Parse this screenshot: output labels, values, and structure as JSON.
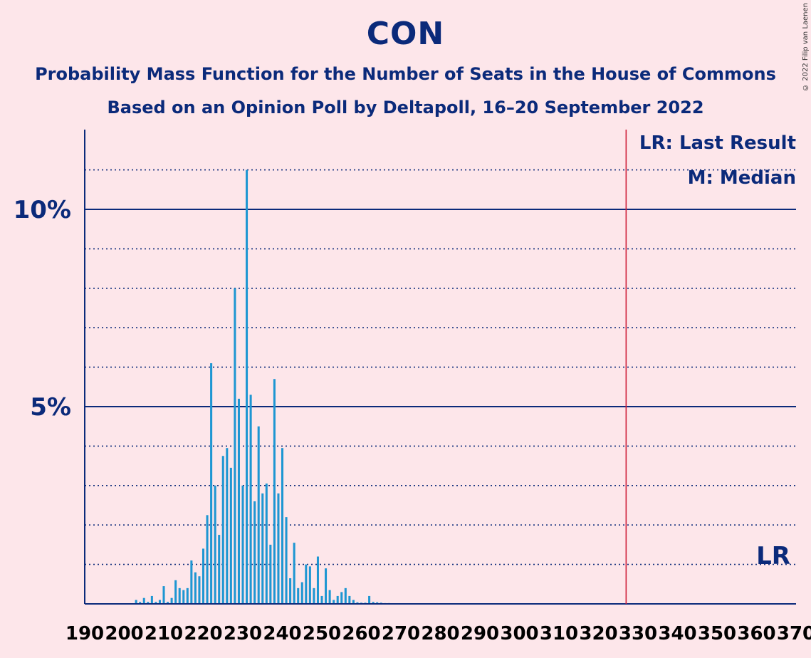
{
  "title": "CON",
  "subtitle1": "Probability Mass Function for the Number of Seats in the House of Commons",
  "subtitle2": "Based on an Opinion Poll by Deltapoll, 16–20 September 2022",
  "copyright": "© 2022 Filip van Laenen",
  "legend": {
    "lr": "LR: Last Result",
    "median": "M: Median",
    "lr_marker": "LR"
  },
  "colors": {
    "background": "#fde6ea",
    "bar": "#1e96d2",
    "axis": "#0b2a7a",
    "last_result_line": "#d0203a"
  },
  "chart_data": {
    "type": "bar",
    "xlim": [
      190,
      370
    ],
    "ylim": [
      0,
      12
    ],
    "x_ticks": [
      "190",
      "200",
      "210",
      "220",
      "230",
      "240",
      "250",
      "260",
      "270",
      "280",
      "290",
      "300",
      "310",
      "320",
      "330",
      "340",
      "350",
      "360",
      "370"
    ],
    "y_major_ticks": [
      {
        "value": 5,
        "label": "5%"
      },
      {
        "value": 10,
        "label": "10%"
      }
    ],
    "y_minor_gridlines": [
      1,
      2,
      3,
      4,
      6,
      7,
      8,
      9,
      11
    ],
    "last_result": 327,
    "median": 231,
    "x": [
      203,
      204,
      205,
      206,
      207,
      208,
      209,
      210,
      211,
      212,
      213,
      214,
      215,
      216,
      217,
      218,
      219,
      220,
      221,
      222,
      223,
      224,
      225,
      226,
      227,
      228,
      229,
      230,
      231,
      232,
      233,
      234,
      235,
      236,
      237,
      238,
      239,
      240,
      241,
      242,
      243,
      244,
      245,
      246,
      247,
      248,
      249,
      250,
      251,
      252,
      253,
      254,
      255,
      256,
      257,
      258,
      259,
      260,
      261,
      262,
      263,
      264,
      265,
      266,
      267,
      268,
      269,
      270
    ],
    "values": [
      0.1,
      0.05,
      0.15,
      0.05,
      0.2,
      0.05,
      0.1,
      0.45,
      0.05,
      0.15,
      0.6,
      0.4,
      0.35,
      0.4,
      1.1,
      0.8,
      0.7,
      1.4,
      2.25,
      6.1,
      3.0,
      1.75,
      3.75,
      3.95,
      3.45,
      8.0,
      5.2,
      3.0,
      11.0,
      5.3,
      2.6,
      4.5,
      2.8,
      3.05,
      1.5,
      5.7,
      2.8,
      3.95,
      2.2,
      0.65,
      1.55,
      0.4,
      0.55,
      1.0,
      0.95,
      0.4,
      1.2,
      0.2,
      0.9,
      0.35,
      0.1,
      0.2,
      0.3,
      0.4,
      0.2,
      0.1,
      0.04,
      0.03,
      0.03,
      0.2,
      0.05,
      0.04,
      0.03,
      0.02,
      0.02,
      0.01,
      0.01,
      0.01
    ],
    "value_unit": "%"
  }
}
